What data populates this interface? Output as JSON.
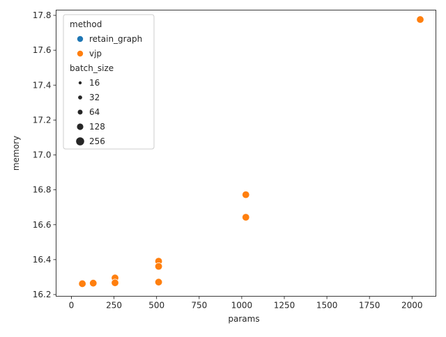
{
  "chart_data": {
    "type": "scatter",
    "xlabel": "params",
    "ylabel": "memory",
    "xlim": [
      -90,
      2140
    ],
    "ylim": [
      16.19,
      17.83
    ],
    "x_ticks": [
      0,
      250,
      500,
      750,
      1000,
      1250,
      1500,
      1750,
      2000
    ],
    "y_ticks": [
      16.2,
      16.4,
      16.6,
      16.8,
      17.0,
      17.2,
      17.4,
      17.6,
      17.8
    ],
    "legend": {
      "position": "top-left",
      "hue_title": "method",
      "hue_entries": [
        {
          "label": "retain_graph",
          "color": "#1f77b4"
        },
        {
          "label": "vjp",
          "color": "#ff7f0e"
        }
      ],
      "size_title": "batch_size",
      "size_entries": [
        {
          "label": "16",
          "value": 16
        },
        {
          "label": "32",
          "value": 32
        },
        {
          "label": "64",
          "value": 64
        },
        {
          "label": "128",
          "value": 128
        },
        {
          "label": "256",
          "value": 256
        }
      ]
    },
    "series": [
      {
        "name": "vjp",
        "color": "#ff7f0e",
        "points": [
          {
            "x": 64,
            "y": 16.262
          },
          {
            "x": 128,
            "y": 16.268
          },
          {
            "x": 128,
            "y": 16.265
          },
          {
            "x": 256,
            "y": 16.295
          },
          {
            "x": 256,
            "y": 16.267
          },
          {
            "x": 512,
            "y": 16.391
          },
          {
            "x": 512,
            "y": 16.361
          },
          {
            "x": 512,
            "y": 16.271
          },
          {
            "x": 1024,
            "y": 16.772
          },
          {
            "x": 1024,
            "y": 16.643
          },
          {
            "x": 2048,
            "y": 17.776
          }
        ]
      }
    ]
  }
}
